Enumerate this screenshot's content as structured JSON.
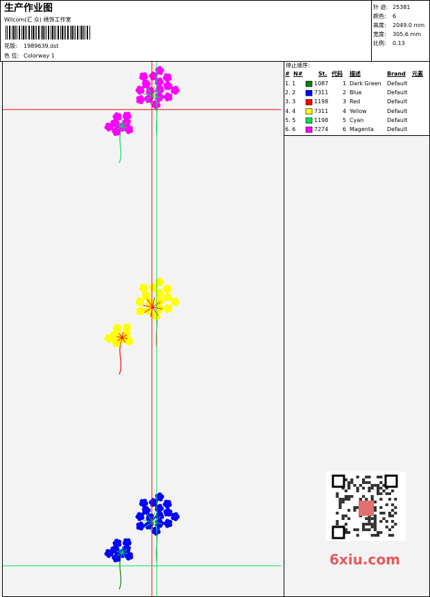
{
  "header": {
    "title": "生产作业图",
    "studio": "Wilcom(汇 众) 绣饰工作室",
    "design_label": "花版:",
    "design_file": "1989639.dst",
    "colorway_label": "色 位:",
    "colorway": "Colorway 1"
  },
  "stats": [
    {
      "label": "针 迹:",
      "value": "25381"
    },
    {
      "label": "颜色:",
      "value": "6"
    },
    {
      "label": "高度:",
      "value": "2049.0 mm"
    },
    {
      "label": "宽度:",
      "value": "305.6 mm"
    },
    {
      "label": "比例:",
      "value": "0.13"
    }
  ],
  "table": {
    "title": "停止顺序:",
    "columns": [
      "#",
      "N#",
      "St.",
      "代码",
      "描述",
      "Brand",
      "元素"
    ],
    "rows": [
      {
        "index": "1. 1",
        "color": "#008000",
        "stitches": "1087",
        "code": "1",
        "description": "Dark Green",
        "brand": "Default"
      },
      {
        "index": "2. 2",
        "color": "#0000ff",
        "stitches": "7311",
        "code": "2",
        "description": "Blue",
        "brand": "Default"
      },
      {
        "index": "3. 3",
        "color": "#ff0000",
        "stitches": "1198",
        "code": "3",
        "description": "Red",
        "brand": "Default"
      },
      {
        "index": "4. 4",
        "color": "#ffff00",
        "stitches": "7311",
        "code": "4",
        "description": "Yellow",
        "brand": "Default"
      },
      {
        "index": "5. 5",
        "color": "#00e050",
        "stitches": "1198",
        "code": "5",
        "description": "Cyan",
        "brand": "Default"
      },
      {
        "index": "6. 6",
        "color": "#ff00ff",
        "stitches": "7274",
        "code": "6",
        "description": "Magenta",
        "brand": "Default"
      }
    ]
  },
  "watermark": "6xiu.com"
}
